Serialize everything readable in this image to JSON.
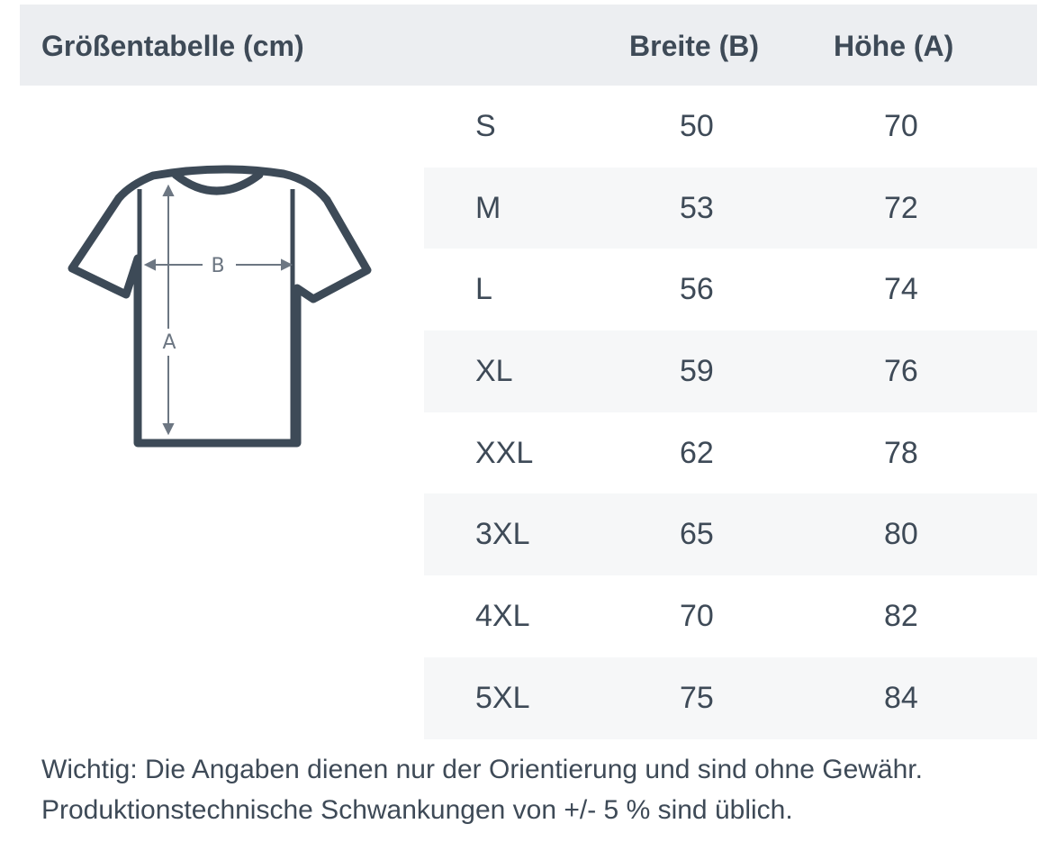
{
  "header": {
    "title": "Größentabelle (cm)",
    "col_width": "Breite (B)",
    "col_height": "Höhe (A)"
  },
  "diagram": {
    "label_b": "B",
    "label_a": "A",
    "color": "#3d4a57"
  },
  "rows": [
    {
      "size": "S",
      "b": "50",
      "a": "70"
    },
    {
      "size": "M",
      "b": "53",
      "a": "72"
    },
    {
      "size": "L",
      "b": "56",
      "a": "74"
    },
    {
      "size": "XL",
      "b": "59",
      "a": "76"
    },
    {
      "size": "XXL",
      "b": "62",
      "a": "78"
    },
    {
      "size": "3XL",
      "b": "65",
      "a": "80"
    },
    {
      "size": "4XL",
      "b": "70",
      "a": "82"
    },
    {
      "size": "5XL",
      "b": "75",
      "a": "84"
    }
  ],
  "note": {
    "line1": "Wichtig: Die Angaben dienen nur der Orientierung und sind ohne Gewähr.",
    "line2": "Produktionstechnische Schwankungen von +/- 5 % sind üblich."
  }
}
